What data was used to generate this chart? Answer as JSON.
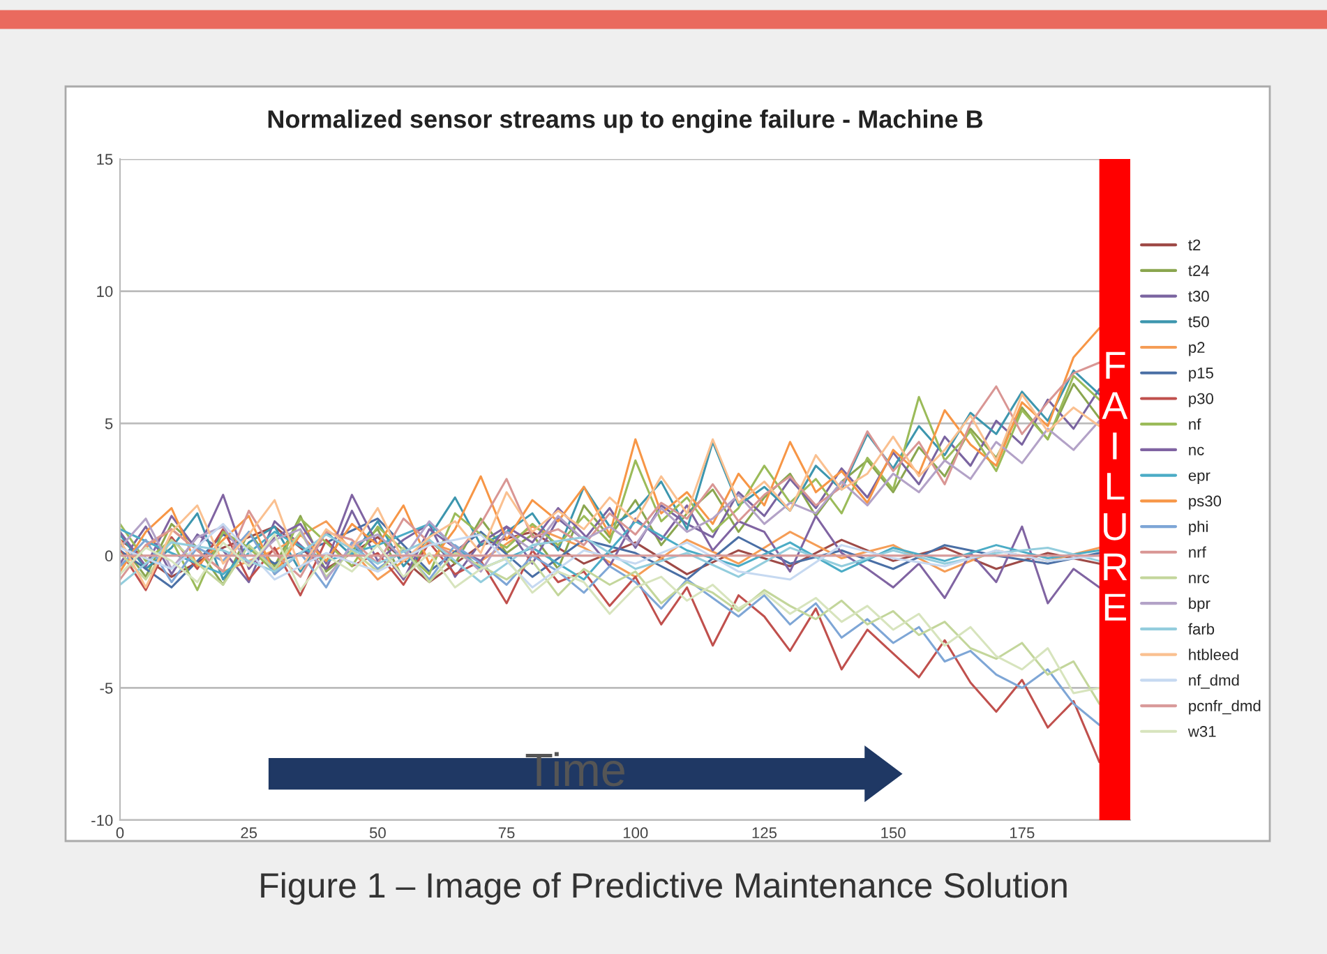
{
  "chart_data": {
    "type": "line",
    "title": "Normalized sensor streams up to engine failure - Machine B",
    "x": [
      0,
      5,
      10,
      15,
      20,
      25,
      30,
      35,
      40,
      45,
      50,
      55,
      60,
      65,
      70,
      75,
      80,
      85,
      90,
      95,
      100,
      105,
      110,
      115,
      120,
      125,
      130,
      135,
      140,
      145,
      150,
      155,
      160,
      165,
      170,
      175,
      180,
      185,
      190
    ],
    "series": [
      {
        "name": "t2",
        "color": "#9e4a47",
        "x": [
          0,
          10,
          20,
          30,
          40,
          50,
          60,
          70,
          80,
          90,
          100,
          110,
          120,
          130,
          140,
          150,
          160,
          170,
          180,
          190
        ],
        "values": [
          0.6,
          -0.8,
          0.3,
          1.1,
          -0.5,
          0.7,
          -1.0,
          0.4,
          0.9,
          -0.3,
          0.5,
          -0.7,
          0.2,
          -0.4,
          0.6,
          -0.2,
          0.3,
          -0.5,
          0.1,
          -0.3
        ]
      },
      {
        "name": "t24",
        "color": "#8aa64f",
        "values": [
          0.5,
          -0.8,
          1.2,
          0.3,
          -1.1,
          0.9,
          -0.4,
          1.5,
          -0.6,
          0.2,
          1.0,
          -0.9,
          0.6,
          -0.3,
          1.4,
          0.1,
          0.8,
          -0.5,
          1.9,
          0.7,
          2.1,
          0.4,
          1.6,
          2.5,
          0.9,
          2.2,
          3.1,
          1.5,
          2.8,
          3.6,
          2.4,
          4.1,
          3.0,
          4.8,
          3.7,
          5.6,
          4.4,
          6.5,
          5.2
        ]
      },
      {
        "name": "t30",
        "color": "#7a64a0",
        "values": [
          -0.3,
          1.1,
          -0.7,
          0.8,
          0.2,
          -1.0,
          1.3,
          0.4,
          -0.5,
          1.7,
          -0.2,
          0.6,
          1.2,
          -0.8,
          0.5,
          1.1,
          -0.3,
          1.4,
          0.6,
          1.8,
          0.3,
          1.9,
          1.2,
          0.7,
          2.4,
          1.5,
          2.9,
          1.8,
          3.3,
          2.2,
          3.9,
          2.7,
          4.5,
          3.4,
          5.1,
          4.2,
          5.9,
          4.8,
          6.3
        ]
      },
      {
        "name": "t50",
        "color": "#3d96ae",
        "values": [
          0.8,
          -0.5,
          0.3,
          1.6,
          -0.9,
          0.5,
          1.1,
          -0.6,
          0.9,
          0.0,
          1.3,
          -0.4,
          0.7,
          2.2,
          0.4,
          0.9,
          1.6,
          0.2,
          2.6,
          1.1,
          1.7,
          2.8,
          1.0,
          4.3,
          1.9,
          2.6,
          1.7,
          3.4,
          2.5,
          4.6,
          3.3,
          4.9,
          3.8,
          5.4,
          4.6,
          6.2,
          5.1,
          7.0,
          6.1
        ]
      },
      {
        "name": "p2",
        "color": "#f59d56",
        "x": [
          0,
          10,
          20,
          30,
          40,
          50,
          60,
          70,
          80,
          90,
          100,
          110,
          120,
          130,
          140,
          150,
          160,
          170,
          180,
          190
        ],
        "values": [
          -0.4,
          1.0,
          -0.6,
          0.2,
          1.3,
          -0.9,
          0.5,
          -0.2,
          1.1,
          0.3,
          -0.8,
          0.6,
          -0.3,
          0.9,
          -0.1,
          0.4,
          -0.6,
          0.2,
          -0.2,
          0.3
        ]
      },
      {
        "name": "p15",
        "color": "#4a6fa5",
        "x": [
          0,
          10,
          20,
          30,
          40,
          50,
          60,
          70,
          80,
          90,
          100,
          110,
          120,
          130,
          140,
          150,
          160,
          170,
          180,
          190
        ],
        "values": [
          0.2,
          -1.2,
          0.8,
          -0.3,
          0.5,
          1.4,
          -0.6,
          0.9,
          -0.8,
          0.6,
          0.1,
          -0.9,
          0.7,
          -0.3,
          0.2,
          -0.5,
          0.4,
          0.0,
          -0.3,
          0.1
        ]
      },
      {
        "name": "p30",
        "color": "#c0504d",
        "values": [
          0.2,
          -1.3,
          0.7,
          -0.5,
          1.0,
          -0.9,
          0.3,
          -1.5,
          0.6,
          -0.4,
          0.1,
          -1.1,
          0.5,
          -0.7,
          -0.2,
          -1.8,
          0.2,
          -1.0,
          -0.6,
          -1.9,
          -0.8,
          -2.6,
          -1.2,
          -3.4,
          -1.5,
          -2.3,
          -3.6,
          -2.0,
          -4.3,
          -2.8,
          -3.7,
          -4.6,
          -3.2,
          -4.8,
          -5.9,
          -4.7,
          -6.5,
          -5.5,
          -7.8
        ]
      },
      {
        "name": "nf",
        "color": "#9bbb59",
        "values": [
          1.2,
          -0.2,
          0.6,
          -1.3,
          0.9,
          0.3,
          -0.6,
          1.4,
          0.5,
          -0.4,
          1.1,
          0.2,
          -0.7,
          1.6,
          0.8,
          0.3,
          1.2,
          0.4,
          1.5,
          0.5,
          3.6,
          1.3,
          2.2,
          0.9,
          1.8,
          3.4,
          2.0,
          2.9,
          1.6,
          3.7,
          2.5,
          6.0,
          3.6,
          4.7,
          3.2,
          5.5,
          4.4,
          6.8,
          5.9
        ]
      },
      {
        "name": "nc",
        "color": "#8064a2",
        "values": [
          0.9,
          -0.4,
          1.5,
          0.2,
          2.3,
          -0.5,
          0.7,
          1.2,
          -0.3,
          2.3,
          0.4,
          -0.9,
          1.0,
          0.3,
          -0.2,
          1.1,
          0.5,
          1.8,
          0.8,
          -0.4,
          1.4,
          0.6,
          1.9,
          0.2,
          1.3,
          0.9,
          -0.6,
          1.5,
          0.1,
          -0.5,
          -1.2,
          -0.3,
          -1.6,
          0.1,
          -1.0,
          1.1,
          -1.8,
          -0.5,
          -1.2
        ]
      },
      {
        "name": "epr",
        "color": "#4bacc6",
        "x": [
          0,
          10,
          20,
          30,
          40,
          50,
          60,
          70,
          80,
          90,
          100,
          110,
          120,
          130,
          140,
          150,
          160,
          170,
          180,
          190
        ],
        "values": [
          1.0,
          0.1,
          -0.7,
          0.9,
          -0.2,
          0.4,
          1.2,
          -0.5,
          0.3,
          -0.9,
          1.3,
          0.2,
          -0.4,
          0.5,
          -0.6,
          0.3,
          -0.2,
          0.4,
          -0.1,
          0.2
        ]
      },
      {
        "name": "ps30",
        "color": "#f79646",
        "values": [
          -0.6,
          0.9,
          1.8,
          -0.4,
          0.6,
          1.5,
          -0.7,
          0.8,
          -0.2,
          1.2,
          0.4,
          1.9,
          -0.3,
          1.0,
          3.0,
          0.6,
          2.1,
          1.3,
          2.6,
          0.8,
          4.4,
          1.6,
          2.4,
          1.2,
          3.1,
          1.9,
          4.3,
          2.4,
          3.2,
          2.0,
          4.0,
          3.1,
          5.5,
          4.2,
          3.4,
          5.8,
          4.9,
          7.5,
          8.6
        ]
      },
      {
        "name": "phi",
        "color": "#7ea6d6",
        "values": [
          -0.4,
          0.6,
          -1.0,
          0.3,
          -0.2,
          0.9,
          -0.7,
          0.1,
          -1.2,
          0.5,
          -0.5,
          0.2,
          -0.9,
          0.4,
          -0.3,
          -1.1,
          0.0,
          -0.6,
          -1.4,
          -0.4,
          -1.0,
          -2.0,
          -0.9,
          -1.6,
          -2.3,
          -1.5,
          -2.6,
          -1.8,
          -3.1,
          -2.4,
          -3.3,
          -2.7,
          -4.0,
          -3.6,
          -4.5,
          -5.0,
          -4.3,
          -5.6,
          -6.4
        ]
      },
      {
        "name": "nrf",
        "color": "#d99694",
        "values": [
          -0.9,
          0.4,
          1.0,
          0.2,
          -0.6,
          1.7,
          0.1,
          -0.8,
          0.9,
          0.6,
          -0.3,
          1.4,
          0.5,
          0.0,
          1.2,
          2.9,
          0.7,
          1.0,
          0.4,
          1.6,
          0.8,
          2.0,
          1.4,
          2.7,
          1.3,
          2.3,
          3.0,
          1.9,
          2.6,
          4.7,
          3.2,
          4.3,
          2.7,
          5.0,
          6.4,
          4.6,
          5.8,
          6.9,
          7.3
        ]
      },
      {
        "name": "nrc",
        "color": "#c3d69b",
        "values": [
          0.1,
          -0.9,
          0.6,
          -0.3,
          -1.1,
          0.4,
          -0.5,
          0.9,
          -0.8,
          0.2,
          -0.6,
          0.3,
          -1.0,
          0.1,
          -0.4,
          -0.9,
          -0.2,
          -1.5,
          -0.5,
          -1.1,
          -0.6,
          -1.8,
          -1.0,
          -1.4,
          -2.1,
          -1.3,
          -1.9,
          -2.4,
          -1.7,
          -2.6,
          -2.1,
          -3.0,
          -2.5,
          -3.5,
          -3.9,
          -3.3,
          -4.5,
          -4.0,
          -5.6
        ]
      },
      {
        "name": "bpr",
        "color": "#b3a2c7",
        "values": [
          0.3,
          1.4,
          -0.5,
          0.7,
          1.1,
          -0.3,
          0.6,
          1.0,
          -0.9,
          0.4,
          0.8,
          -0.1,
          1.3,
          0.3,
          -0.6,
          0.9,
          0.2,
          1.5,
          0.6,
          1.1,
          0.4,
          1.8,
          0.9,
          1.4,
          2.3,
          1.2,
          2.0,
          1.6,
          2.8,
          1.9,
          3.1,
          2.4,
          3.6,
          2.9,
          4.3,
          3.5,
          4.8,
          4.0,
          5.1
        ]
      },
      {
        "name": "farb",
        "color": "#93cddd",
        "x": [
          0,
          10,
          20,
          30,
          40,
          50,
          60,
          70,
          80,
          90,
          100,
          110,
          120,
          130,
          140,
          150,
          160,
          170,
          180,
          190
        ],
        "values": [
          -1.1,
          0.5,
          0.2,
          -0.6,
          0.8,
          -0.3,
          0.6,
          -1.0,
          0.4,
          0.7,
          -0.5,
          0.1,
          -0.8,
          0.3,
          -0.4,
          0.2,
          -0.3,
          0.1,
          0.3,
          -0.2
        ]
      },
      {
        "name": "htbleed",
        "color": "#fac090",
        "values": [
          0.6,
          -1.2,
          0.9,
          1.9,
          -0.3,
          0.8,
          2.1,
          -0.5,
          1.0,
          0.3,
          1.8,
          -0.2,
          0.7,
          1.3,
          0.1,
          2.4,
          0.9,
          1.7,
          1.0,
          2.2,
          1.3,
          3.0,
          1.6,
          4.4,
          2.0,
          2.8,
          1.7,
          3.8,
          2.5,
          3.1,
          4.5,
          3.0,
          4.0,
          5.3,
          3.6,
          6.1,
          4.7,
          5.6,
          4.9
        ]
      },
      {
        "name": "nf_dmd",
        "color": "#c6d9f1",
        "x": [
          0,
          10,
          20,
          30,
          40,
          50,
          60,
          70,
          80,
          90,
          100,
          110,
          120,
          130,
          140,
          150,
          160,
          170,
          180,
          190
        ],
        "values": [
          0.3,
          -0.5,
          1.2,
          -0.9,
          0.1,
          -0.6,
          0.4,
          0.8,
          -1.2,
          0.2,
          -0.3,
          0.5,
          -0.6,
          -0.9,
          0.4,
          -0.1,
          -0.4,
          0.2,
          -0.2,
          0.0
        ]
      },
      {
        "name": "pcnfr_dmd",
        "color": "#d99a9a",
        "x": [
          0,
          190
        ],
        "values": [
          0,
          0
        ]
      },
      {
        "name": "w31",
        "color": "#d7e4bd",
        "values": [
          -0.7,
          0.3,
          -0.2,
          -1.0,
          0.5,
          -0.4,
          0.8,
          -1.3,
          0.0,
          -0.6,
          0.4,
          -0.8,
          0.1,
          -1.2,
          -0.5,
          -0.1,
          -1.4,
          -0.6,
          -1.0,
          -2.2,
          -1.2,
          -0.8,
          -1.7,
          -1.1,
          -2.0,
          -1.4,
          -2.2,
          -1.6,
          -2.5,
          -1.9,
          -2.8,
          -2.2,
          -3.4,
          -2.7,
          -3.8,
          -4.3,
          -3.5,
          -5.2,
          -5.0
        ]
      }
    ],
    "xlim": [
      0,
      196
    ],
    "xticks": [
      0,
      25,
      50,
      75,
      100,
      125,
      150,
      175
    ],
    "ylim": [
      -10,
      15
    ],
    "yticks": [
      -10,
      -5,
      0,
      5,
      10,
      15
    ],
    "grid": "y",
    "legend": "right",
    "marker": "none",
    "line_style": "solid",
    "bands": [
      {
        "axis": "x",
        "from": 190,
        "to": 196,
        "label": "FAILURE",
        "color": "#ff0000"
      }
    ],
    "annotations": [
      "Time",
      "Figure 1 – Image of Predictive Maintenance Solution"
    ]
  }
}
